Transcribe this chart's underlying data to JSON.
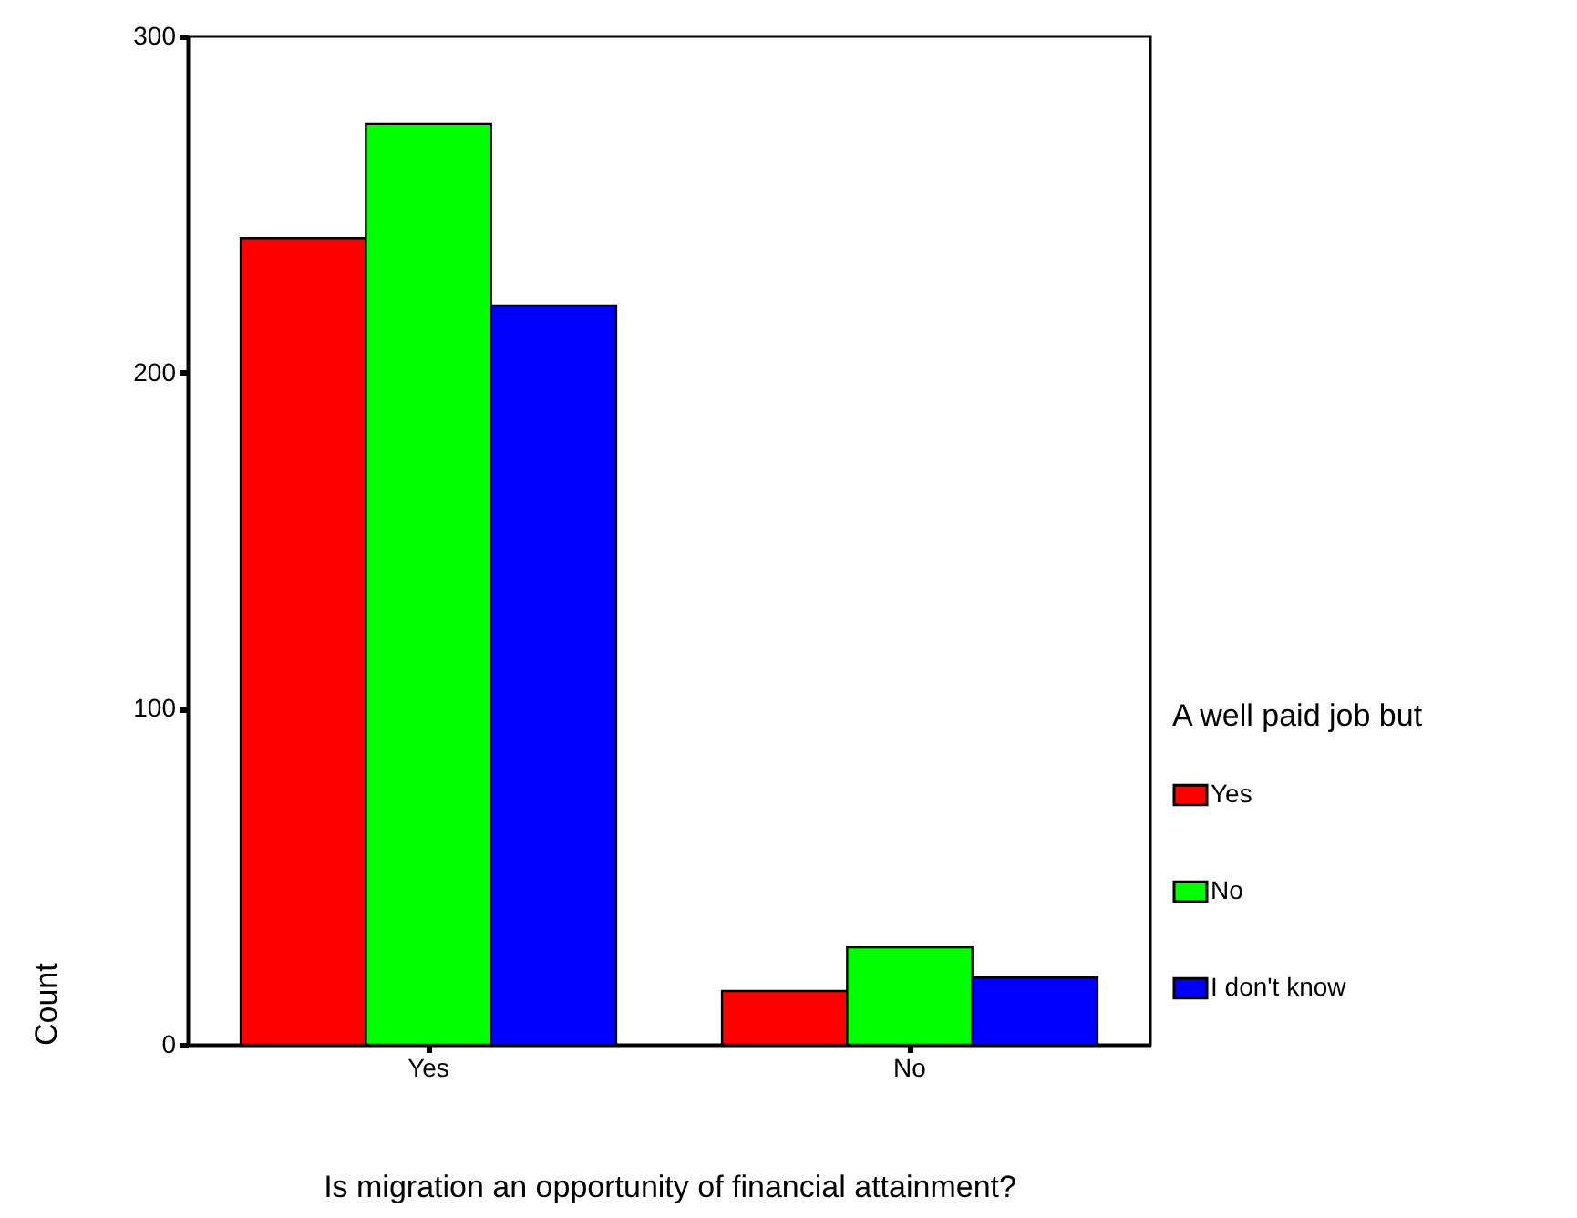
{
  "chart_data": {
    "type": "bar",
    "xlabel": "Is migration an opportunity of financial attainment?",
    "ylabel": "Count",
    "legend_title": "A well paid job but",
    "categories": [
      "Yes",
      "No"
    ],
    "series": [
      {
        "name": "Yes",
        "color": "#ff0000",
        "values": [
          240,
          16
        ]
      },
      {
        "name": "No",
        "color": "#00ff00",
        "values": [
          274,
          29
        ]
      },
      {
        "name": "I don't know",
        "color": "#0000ff",
        "values": [
          220,
          20
        ]
      }
    ],
    "ylim": [
      0,
      300
    ],
    "yticks": [
      0,
      100,
      200,
      300
    ],
    "grid": false,
    "legend": "right"
  }
}
